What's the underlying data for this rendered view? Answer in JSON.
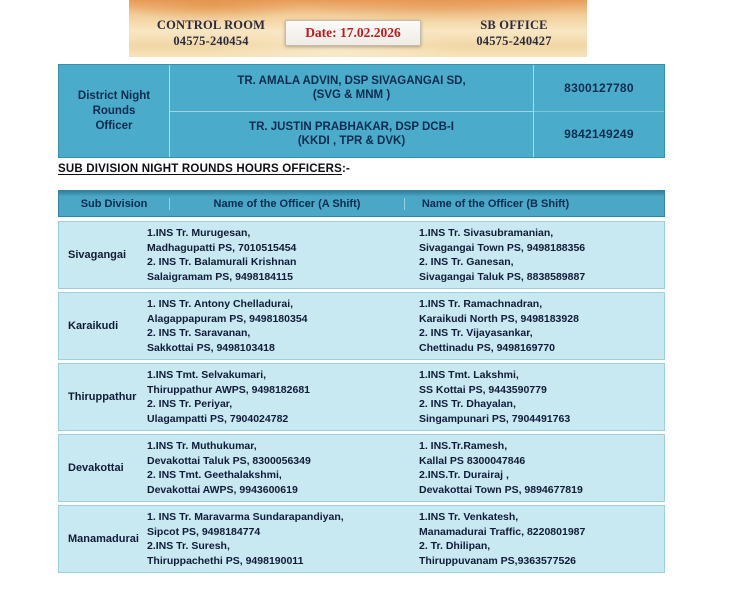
{
  "banner": {
    "control_room": {
      "title": "CONTROL ROOM",
      "phone": "04575-240454"
    },
    "date_label": "Date: 17.02.2026",
    "sb_office": {
      "title": "SB OFFICE",
      "phone": "04575-240427"
    }
  },
  "district_table": {
    "row_header": "District Night\nRounds\nOfficer",
    "officers": [
      {
        "name": "TR. AMALA ADVIN, DSP  SIVAGANGAI SD,\n(SVG & MNM )",
        "phone": "8300127780"
      },
      {
        "name": "TR. JUSTIN PRABHAKAR, DSP  DCB-I\n(KKDI , TPR & DVK)",
        "phone": "9842149249"
      }
    ]
  },
  "section_heading": {
    "underlined": "SUB DIVISION NIGHT ROUNDS HOURS OFFICERS",
    "suffix": ":-"
  },
  "sub_table": {
    "headers": [
      "Sub Division",
      "Name of the Officer (A Shift)",
      "Name of the Officer (B Shift)"
    ],
    "rows": [
      {
        "division": "Sivagangai",
        "a_shift": "1.INS Tr. Murugesan,\nMadhagupatti PS, 7010515454\n2. INS Tr. Balamurali Krishnan\nSalaigramam PS, 9498184115",
        "b_shift": "1.INS Tr. Sivasubramanian,\nSivagangai Town PS, 9498188356\n2. INS Tr. Ganesan,\nSivagangai Taluk PS, 8838589887"
      },
      {
        "division": "Karaikudi",
        "a_shift": "1. INS Tr. Antony Chelladurai,\nAlagappapuram PS, 9498180354\n2. INS Tr. Saravanan,\nSakkottai PS, 9498103418",
        "b_shift": "1.INS Tr. Ramachnadran,\nKaraikudi North PS, 9498183928\n2. INS Tr. Vijayasankar,\nChettinadu PS, 9498169770"
      },
      {
        "division": "Thiruppathur",
        "a_shift": "1.INS Tmt. Selvakumari,\nThiruppathur AWPS, 9498182681\n2. INS Tr. Periyar,\nUlagampatti PS, 7904024782",
        "b_shift": "1.INS Tmt. Lakshmi,\nSS Kottai PS, 9443590779\n2. INS Tr. Dhayalan,\nSingampunari PS, 7904491763"
      },
      {
        "division": "Devakottai",
        "a_shift": "1.INS Tr. Muthukumar,\nDevakottai Taluk PS, 8300056349\n2. INS Tmt. Geethalakshmi,\nDevakottai AWPS, 9943600619",
        "b_shift": "1. INS.Tr.Ramesh,\nKallal PS 8300047846\n2.INS.Tr. Durairaj ,\nDevakottai Town PS, 9894677819"
      },
      {
        "division": "Manamadurai",
        "a_shift": "1. INS Tr. Maravarma Sundarapandiyan,\nSipcot PS, 9498184774\n2.INS Tr. Suresh,\nThiruppachethi PS, 9498190011",
        "b_shift": "1.INS Tr. Venkatesh,\nManamadurai Traffic, 8220801987\n2. Tr. Dhilipan,\nThiruppuvanam PS,9363577526"
      }
    ]
  },
  "colors": {
    "district_table_bg": "#4aacca",
    "table_header_bg": "#4aa7c6",
    "row_bg": "#c8e8f2",
    "banner_orange": "#e89d58",
    "banner_sand": "#f6e3bb",
    "date_red": "#c2181b",
    "text_navy": "#0b2b50"
  }
}
